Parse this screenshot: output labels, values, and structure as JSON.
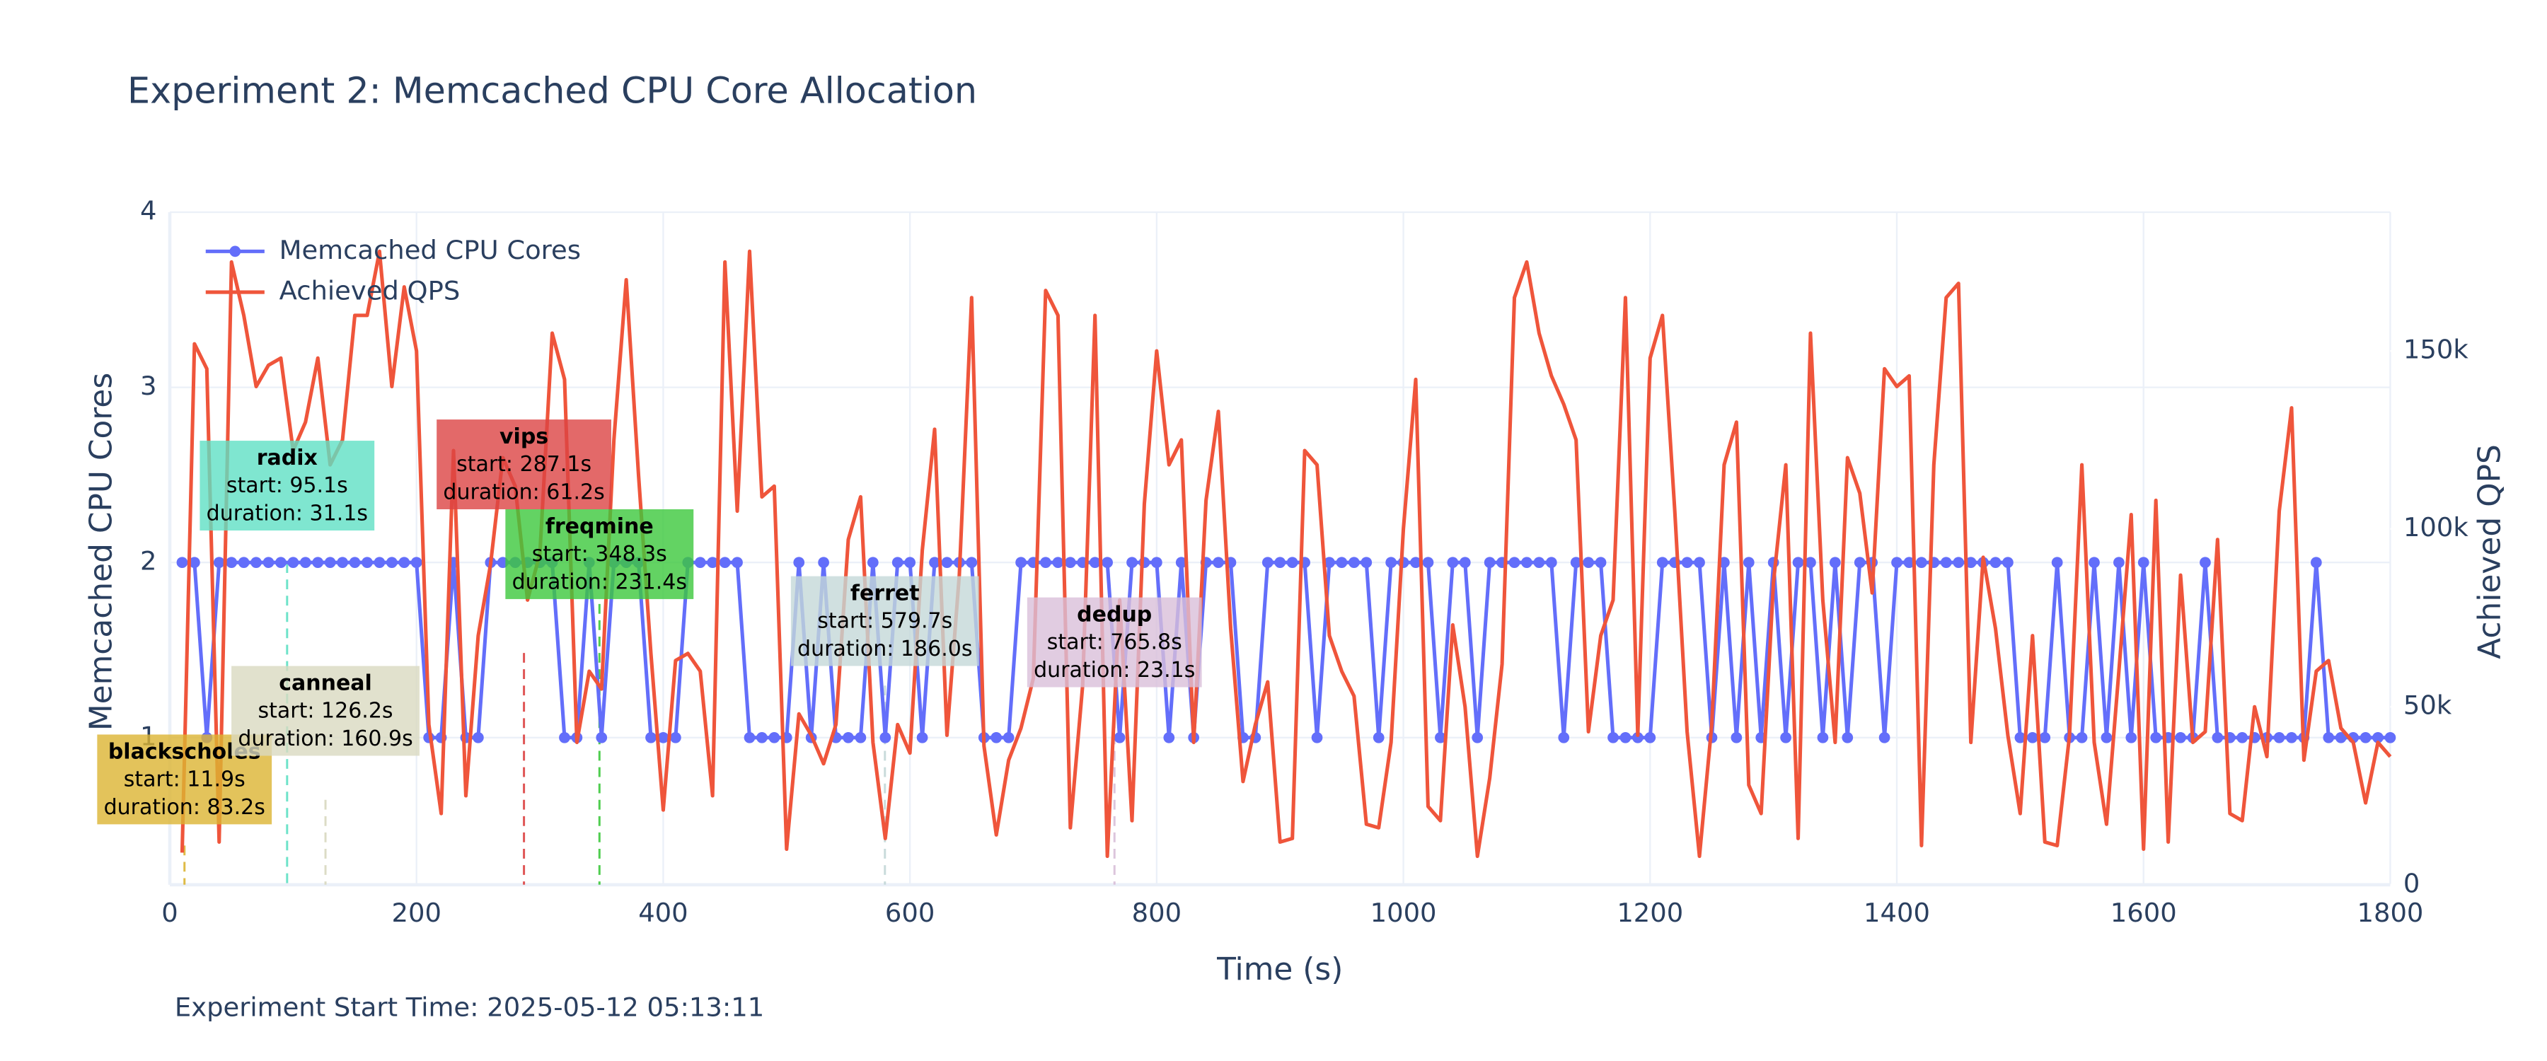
{
  "chart_data": {
    "type": "line",
    "title": "Experiment 2: Memcached CPU Core Allocation",
    "x_label": "Time (s)",
    "y_label": "Memcached CPU Cores",
    "y2_label": "Achieved QPS",
    "footnote": "Experiment Start Time: 2025-05-12 05:13:11",
    "xlim": [
      0,
      1800
    ],
    "xticks": [
      0,
      200,
      400,
      600,
      800,
      1000,
      1200,
      1400,
      1600,
      1800
    ],
    "ylim": [
      0.16,
      4
    ],
    "yticks": [
      1,
      2,
      3,
      4
    ],
    "y2lim": [
      0,
      189000
    ],
    "y2ticks": [
      0,
      {
        "value": 50000,
        "label": "50k"
      },
      {
        "value": 100000,
        "label": "100k"
      },
      {
        "value": 150000,
        "label": "150k"
      }
    ],
    "grid": true,
    "legend": "top-left",
    "x": [
      10,
      20,
      30,
      40,
      50,
      60,
      70,
      80,
      90,
      100,
      110,
      120,
      130,
      140,
      150,
      160,
      170,
      180,
      190,
      200,
      210,
      220,
      230,
      240,
      250,
      260,
      270,
      280,
      290,
      300,
      310,
      320,
      330,
      340,
      350,
      360,
      370,
      380,
      390,
      400,
      410,
      420,
      430,
      440,
      450,
      460,
      470,
      480,
      490,
      500,
      510,
      520,
      530,
      540,
      550,
      560,
      570,
      580,
      590,
      600,
      610,
      620,
      630,
      640,
      650,
      660,
      670,
      680,
      690,
      700,
      710,
      720,
      730,
      740,
      750,
      760,
      770,
      780,
      790,
      800,
      810,
      820,
      830,
      840,
      850,
      860,
      870,
      880,
      890,
      900,
      910,
      920,
      930,
      940,
      950,
      960,
      970,
      980,
      990,
      1000,
      1010,
      1020,
      1030,
      1040,
      1050,
      1060,
      1070,
      1080,
      1090,
      1100,
      1110,
      1120,
      1130,
      1140,
      1150,
      1160,
      1170,
      1180,
      1190,
      1200,
      1210,
      1220,
      1230,
      1240,
      1250,
      1260,
      1270,
      1280,
      1290,
      1300,
      1310,
      1320,
      1330,
      1340,
      1350,
      1360,
      1370,
      1380,
      1390,
      1400,
      1410,
      1420,
      1430,
      1440,
      1450,
      1460,
      1470,
      1480,
      1490,
      1500,
      1510,
      1520,
      1530,
      1540,
      1550,
      1560,
      1570,
      1580,
      1590,
      1600,
      1610,
      1620,
      1630,
      1640,
      1650,
      1660,
      1670,
      1680,
      1690,
      1700,
      1710,
      1720,
      1730,
      1740,
      1750,
      1760,
      1770,
      1780,
      1790,
      1800
    ],
    "series": [
      {
        "name": "Memcached CPU Cores",
        "color": "#636efa",
        "markers": true,
        "values": [
          2,
          2,
          1,
          2,
          2,
          2,
          2,
          2,
          2,
          2,
          2,
          2,
          2,
          2,
          2,
          2,
          2,
          2,
          2,
          2,
          1,
          1,
          2,
          1,
          1,
          2,
          2,
          2,
          2,
          2,
          2,
          1,
          1,
          2,
          1,
          2,
          2,
          2,
          1,
          1,
          1,
          2,
          2,
          2,
          2,
          2,
          1,
          1,
          1,
          1,
          2,
          1,
          2,
          1,
          1,
          1,
          2,
          1,
          2,
          2,
          1,
          2,
          2,
          2,
          2,
          1,
          1,
          1,
          2,
          2,
          2,
          2,
          2,
          2,
          2,
          2,
          1,
          2,
          2,
          2,
          1,
          2,
          1,
          2,
          2,
          2,
          1,
          1,
          2,
          2,
          2,
          2,
          1,
          2,
          2,
          2,
          2,
          1,
          2,
          2,
          2,
          2,
          1,
          2,
          2,
          1,
          2,
          2,
          2,
          2,
          2,
          2,
          1,
          2,
          2,
          2,
          1,
          1,
          1,
          1,
          2,
          2,
          2,
          2,
          1,
          2,
          1,
          2,
          1,
          2,
          1,
          2,
          2,
          1,
          2,
          1,
          2,
          2,
          1,
          2,
          2,
          2,
          2,
          2,
          2,
          2,
          2,
          2,
          2,
          1,
          1,
          1,
          2,
          1,
          1,
          2,
          1,
          2,
          1,
          2,
          1,
          1,
          1,
          1,
          2,
          1,
          1,
          1,
          1,
          1,
          1,
          1,
          1,
          2,
          1,
          1,
          1,
          1,
          1,
          1
        ]
      },
      {
        "name": "Achieved QPS",
        "color": "#ef553b",
        "axis": "y2",
        "markers": false,
        "values": [
          9000,
          152000,
          145000,
          12000,
          175000,
          160000,
          140000,
          146000,
          148000,
          122000,
          130000,
          148000,
          118000,
          125000,
          160000,
          160000,
          178000,
          140000,
          168000,
          150000,
          45000,
          20000,
          122000,
          25000,
          70000,
          90000,
          120000,
          112000,
          80000,
          93000,
          155000,
          142000,
          40000,
          60000,
          55000,
          125000,
          170000,
          115000,
          65000,
          21000,
          63000,
          65000,
          60000,
          25000,
          175000,
          105000,
          178000,
          109000,
          112000,
          10000,
          48000,
          42000,
          34000,
          45000,
          97000,
          109000,
          40000,
          13000,
          45000,
          37000,
          94000,
          128000,
          42000,
          87000,
          165000,
          39000,
          14000,
          35000,
          44000,
          58000,
          167000,
          160000,
          16000,
          56000,
          160000,
          8000,
          80000,
          18000,
          107000,
          150000,
          118000,
          125000,
          40000,
          108000,
          133000,
          72000,
          29000,
          45000,
          57000,
          12000,
          13000,
          122000,
          118000,
          70000,
          60000,
          53000,
          17000,
          16000,
          40000,
          100000,
          142000,
          22000,
          18000,
          73000,
          50000,
          8000,
          30000,
          62000,
          165000,
          175000,
          155000,
          143000,
          135000,
          125000,
          43000,
          70000,
          80000,
          165000,
          42000,
          148000,
          160000,
          105000,
          43000,
          8000,
          45000,
          118000,
          130000,
          28000,
          20000,
          85000,
          118000,
          13000,
          155000,
          80000,
          40000,
          120000,
          110000,
          82000,
          145000,
          140000,
          143000,
          11000,
          118000,
          165000,
          169000,
          40000,
          92000,
          72000,
          42000,
          20000,
          70000,
          12000,
          11000,
          42000,
          118000,
          40000,
          17000,
          60000,
          104000,
          10000,
          108000,
          12000,
          87000,
          40000,
          43000,
          97000,
          20000,
          18000,
          50000,
          36000,
          105000,
          134000,
          35000,
          60000,
          63000,
          44000,
          40000,
          23000,
          40000,
          36000
        ]
      }
    ],
    "jobs": [
      {
        "name": "blackscholes",
        "start": 11.9,
        "start_label": "start: 11.9s",
        "duration_label": "duration: 83.2s",
        "color": "#dcb432"
      },
      {
        "name": "radix",
        "start": 95.1,
        "start_label": "start: 95.1s",
        "duration_label": "duration: 31.1s",
        "color": "#5fe0c4"
      },
      {
        "name": "canneal",
        "start": 126.2,
        "start_label": "start: 126.2s",
        "duration_label": "duration: 160.9s",
        "color": "#d9d9c0"
      },
      {
        "name": "vips",
        "start": 287.1,
        "start_label": "start: 287.1s",
        "duration_label": "duration: 61.2s",
        "color": "#dc4444"
      },
      {
        "name": "freqmine",
        "start": 348.3,
        "start_label": "start: 348.3s",
        "duration_label": "duration: 231.4s",
        "color": "#3cc83c"
      },
      {
        "name": "ferret",
        "start": 579.7,
        "start_label": "start: 579.7s",
        "duration_label": "duration: 186.0s",
        "color": "#c4d8d8"
      },
      {
        "name": "dedup",
        "start": 765.8,
        "start_label": "start: 765.8s",
        "duration_label": "duration: 23.1s",
        "color": "#d9bfd9"
      }
    ]
  }
}
